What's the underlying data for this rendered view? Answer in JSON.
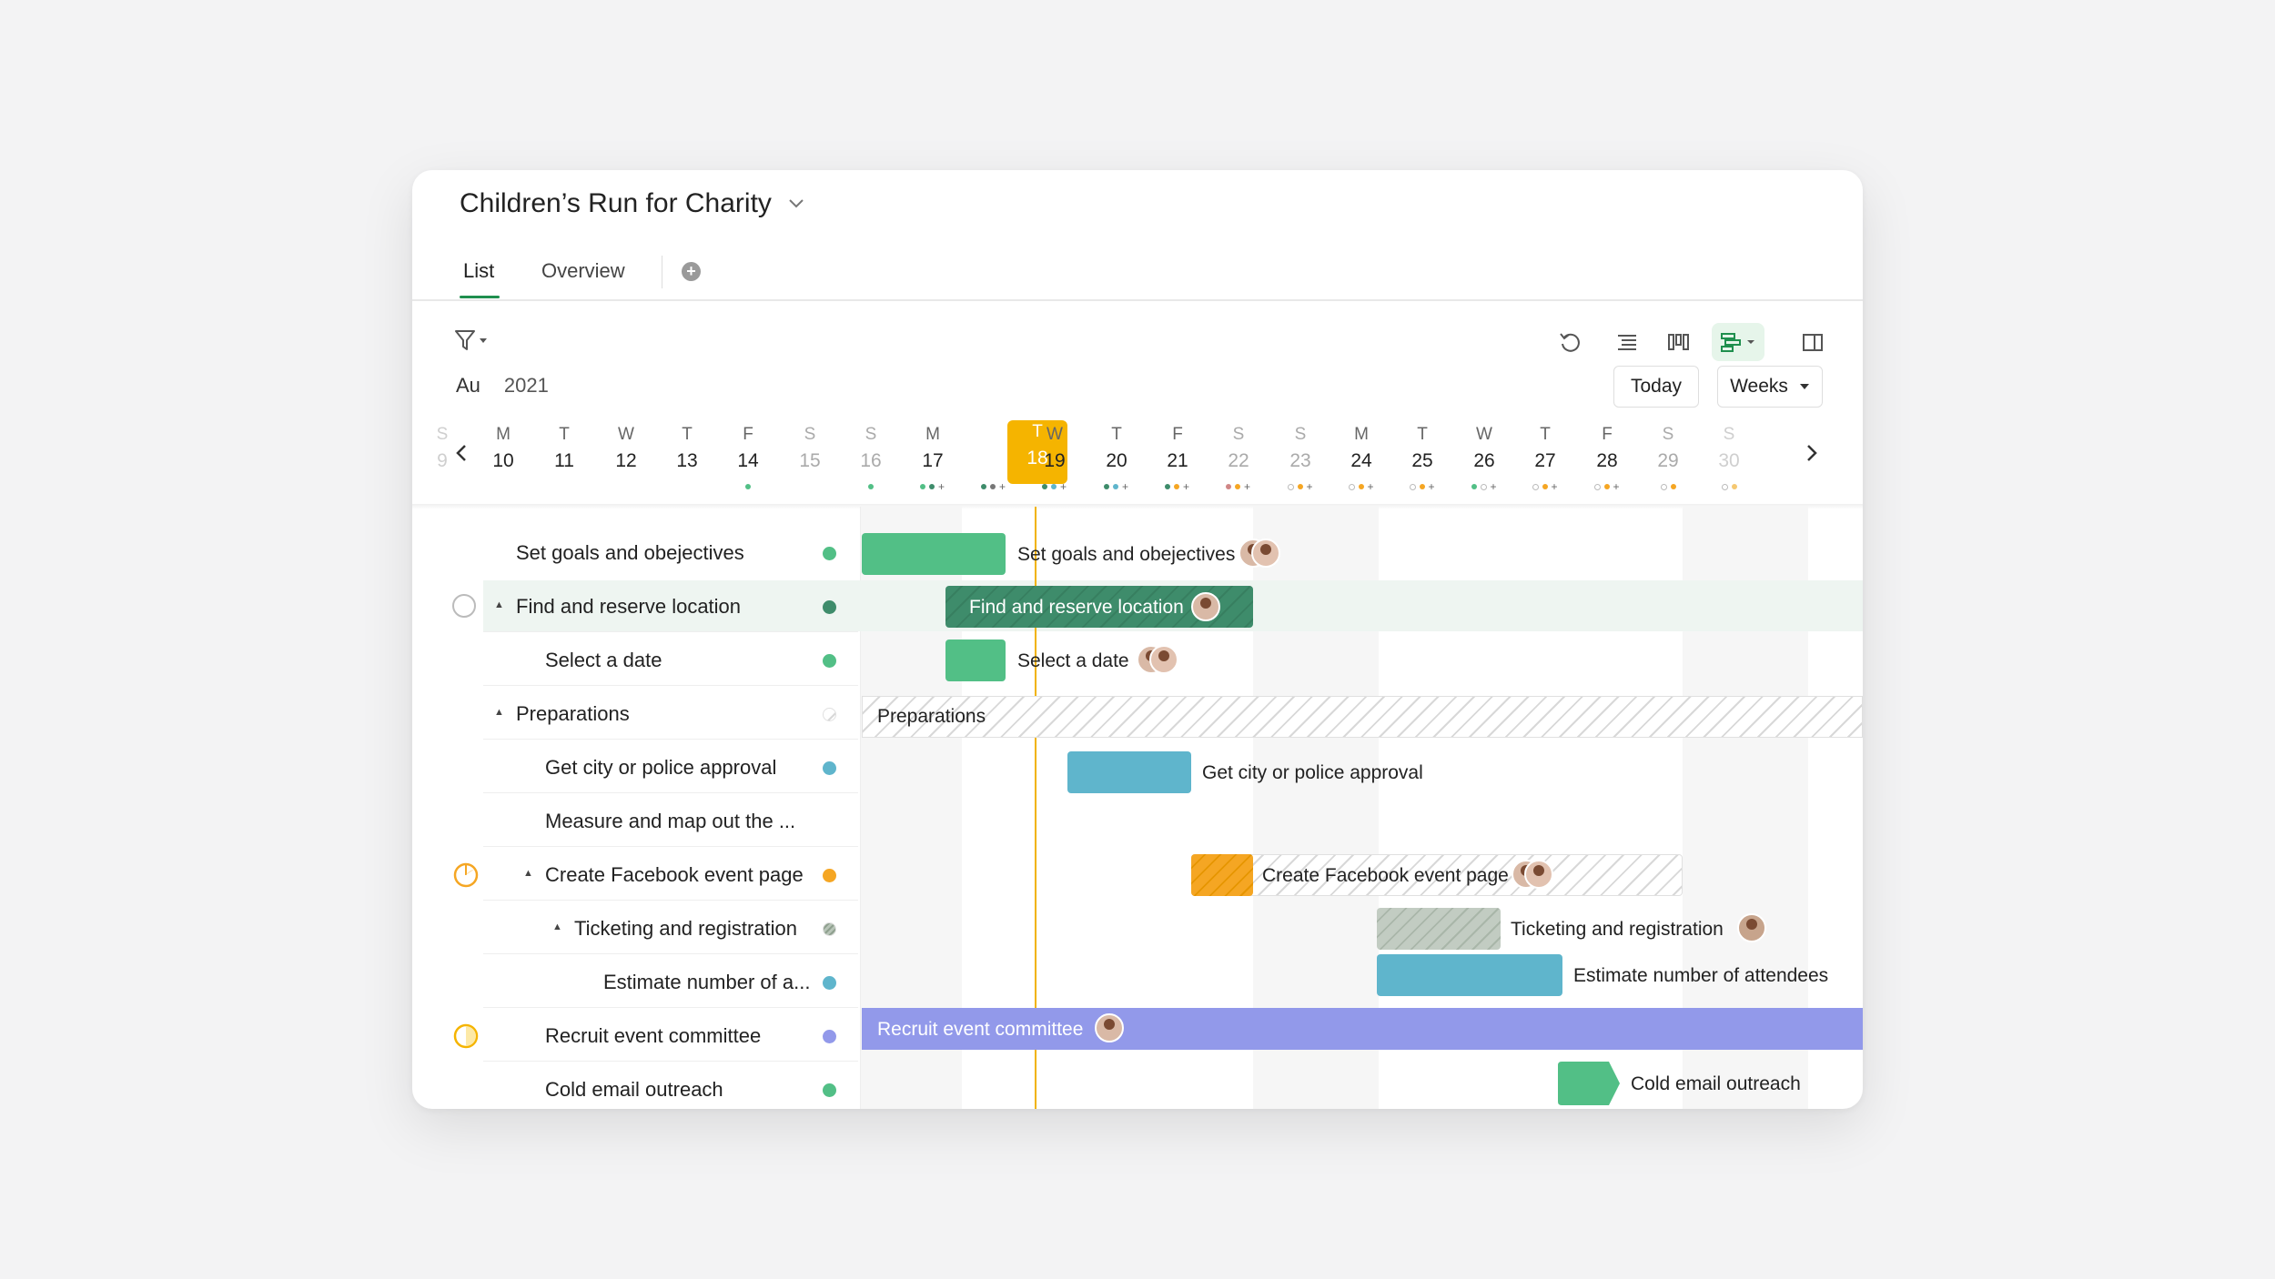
{
  "project": {
    "title": "Children’s Run for Charity"
  },
  "tabs": {
    "list": "List",
    "overview": "Overview"
  },
  "toolbar": {
    "today_label": "Today",
    "weeks_label": "Weeks"
  },
  "period": {
    "month": "Au",
    "year": "2021"
  },
  "days": [
    {
      "letter": "S",
      "num": "9"
    },
    {
      "letter": "M",
      "num": "10"
    },
    {
      "letter": "T",
      "num": "11"
    },
    {
      "letter": "W",
      "num": "12"
    },
    {
      "letter": "T",
      "num": "13"
    },
    {
      "letter": "F",
      "num": "14"
    },
    {
      "letter": "S",
      "num": "15"
    },
    {
      "letter": "S",
      "num": "16"
    },
    {
      "letter": "M",
      "num": "17"
    },
    {
      "letter": "T",
      "num": "18"
    },
    {
      "letter": "W",
      "num": "19"
    },
    {
      "letter": "T",
      "num": "20"
    },
    {
      "letter": "F",
      "num": "21"
    },
    {
      "letter": "S",
      "num": "22"
    },
    {
      "letter": "S",
      "num": "23"
    },
    {
      "letter": "M",
      "num": "24"
    },
    {
      "letter": "T",
      "num": "25"
    },
    {
      "letter": "W",
      "num": "26"
    },
    {
      "letter": "T",
      "num": "27"
    },
    {
      "letter": "F",
      "num": "28"
    },
    {
      "letter": "S",
      "num": "29"
    },
    {
      "letter": "S",
      "num": "30"
    }
  ],
  "tasks": [
    {
      "label": "Set goals and obejectives"
    },
    {
      "label": "Find and reserve location"
    },
    {
      "label": "Select a date"
    },
    {
      "label": "Preparations"
    },
    {
      "label": "Get city or police approval"
    },
    {
      "label": "Measure and map out the ..."
    },
    {
      "label": "Create Facebook event page"
    },
    {
      "label": "Ticketing and registration"
    },
    {
      "label": "Estimate number of a..."
    },
    {
      "label": "Recruit event committee"
    },
    {
      "label": "Cold email outreach"
    }
  ],
  "bars": {
    "goals": "Set goals and obejectives",
    "location": "Find and reserve location",
    "date": "Select a date",
    "preparations": "Preparations",
    "approval": "Get city or police approval",
    "facebook": "Create Facebook event page",
    "ticketing": "Ticketing and registration",
    "estimate": "Estimate number of attendees",
    "recruit": "Recruit event committee",
    "cold": "Cold email outreach"
  },
  "colors": {
    "green": "#52bf86",
    "dark_green": "#3e8c6b",
    "blue": "#5fb5cc",
    "orange": "#f5a623",
    "purple": "#9299ea",
    "accent": "#1f8f4e",
    "today": "#f5b400"
  }
}
